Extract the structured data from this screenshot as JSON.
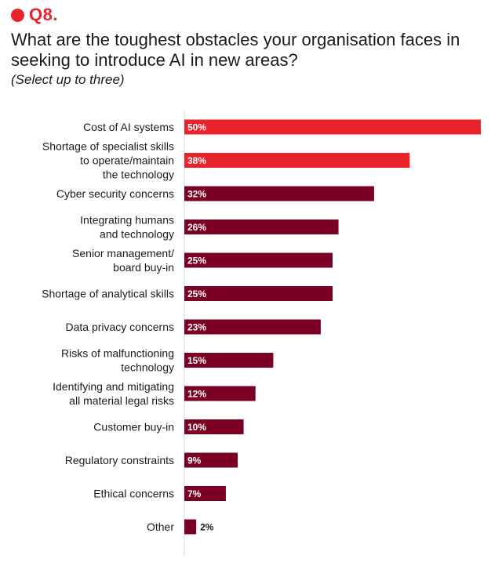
{
  "header": {
    "question_number": "Q8.",
    "question": "What are the toughest obstacles your organisation faces in seeking to introduce AI in new areas?",
    "instruction": "(Select up to three)"
  },
  "colors": {
    "accent_red": "#e8232d",
    "bar_dark": "#7b0024",
    "axis_line": "#d9d9d9"
  },
  "chart_data": {
    "type": "bar",
    "orientation": "horizontal",
    "categories": [
      "Cost of AI systems",
      "Shortage of specialist skills to operate/maintain the technology",
      "Cyber security concerns",
      "Integrating humans and technology",
      "Senior management/ board buy-in",
      "Shortage of analytical skills",
      "Data privacy concerns",
      "Risks of malfunctioning technology",
      "Identifying and mitigating all material legal risks",
      "Customer buy-in",
      "Regulatory constraints",
      "Ethical concerns",
      "Other"
    ],
    "category_lines": [
      [
        "Cost of AI systems"
      ],
      [
        "Shortage of specialist skills",
        "to operate/maintain",
        "the technology"
      ],
      [
        "Cyber security concerns"
      ],
      [
        "Integrating humans",
        "and technology"
      ],
      [
        "Senior management/",
        "board buy-in"
      ],
      [
        "Shortage of analytical skills"
      ],
      [
        "Data privacy concerns"
      ],
      [
        "Risks of malfunctioning",
        "technology"
      ],
      [
        "Identifying and mitigating",
        "all material legal risks"
      ],
      [
        "Customer buy-in"
      ],
      [
        "Regulatory constraints"
      ],
      [
        "Ethical concerns"
      ],
      [
        "Other"
      ]
    ],
    "values": [
      50,
      38,
      32,
      26,
      25,
      25,
      23,
      15,
      12,
      10,
      9,
      7,
      2
    ],
    "value_labels": [
      "50%",
      "38%",
      "32%",
      "26%",
      "25%",
      "25%",
      "23%",
      "15%",
      "12%",
      "10%",
      "9%",
      "7%",
      "2%"
    ],
    "highlighted": [
      true,
      true,
      false,
      false,
      false,
      false,
      false,
      false,
      false,
      false,
      false,
      false,
      false
    ],
    "xlim": [
      0,
      50
    ],
    "xlabel": "",
    "ylabel": "",
    "grid": false,
    "legend": "none"
  }
}
